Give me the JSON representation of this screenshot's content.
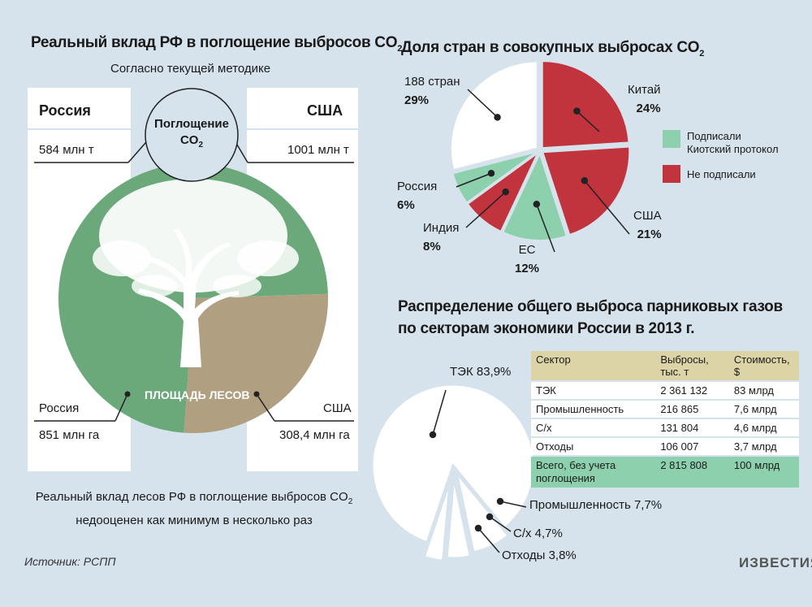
{
  "left": {
    "title": "Реальный вклад РФ в поглощение выбросов CO",
    "title_sub": "2",
    "subtitle": "Согласно текущей методике",
    "russia_label": "Россия",
    "usa_label": "США",
    "circle_label": "Поглощение",
    "circle_co2": "CO",
    "circle_co2_sub": "2",
    "russia_absorption": "584 млн т",
    "usa_absorption": "1001 млн т",
    "forest_label": "ПЛОЩАДЬ ЛЕСОВ",
    "russia_forest_country": "Россия",
    "russia_forest_area": "851 млн га",
    "usa_forest_country": "США",
    "usa_forest_area": "308,4 млн га",
    "footnote_line1": "Реальный вклад лесов РФ в поглощение выбросов CO",
    "footnote_line1_sub": "2",
    "footnote_line2": "недооценен как минимум в несколько раз",
    "colors": {
      "russia": "#6ba97b",
      "usa": "#b09f80"
    }
  },
  "right_top": {
    "title": "Доля стран в совокупных выбросах CO",
    "title_sub": "2",
    "legend": [
      {
        "label_line1": "Подписали",
        "label_line2": "Киотский протокол",
        "color": "#8dd0ae"
      },
      {
        "label_line1": "Не подписали",
        "label_line2": "",
        "color": "#c1343e"
      }
    ]
  },
  "right_bottom": {
    "title_line1": "Распределение общего выброса парниковых газов",
    "title_line2": "по секторам экономики России в 2013 г.",
    "table": {
      "headers": [
        "Сектор",
        "Выбросы, тыс. т",
        "Стоимость, $"
      ],
      "rows": [
        [
          "ТЭК",
          "2 361 132",
          "83 млрд"
        ],
        [
          "Промышленность",
          "216 865",
          "7,6 млрд"
        ],
        [
          "С/х",
          "131 804",
          "4,6 млрд"
        ],
        [
          "Отходы",
          "106 007",
          "3,7 млрд"
        ]
      ],
      "total": [
        "Всего, без учета поглощения",
        "2 815 808",
        "100 млрд"
      ]
    }
  },
  "chart_data": [
    {
      "type": "pie",
      "title": "Реальный вклад РФ в поглощение выбросов CO2",
      "slices": [
        {
          "label": "Россия",
          "value": 851,
          "unit": "млн га"
        },
        {
          "label": "США",
          "value": 308.4,
          "unit": "млн га"
        }
      ]
    },
    {
      "type": "pie",
      "title": "Доля стран в совокупных выбросах CO2",
      "slices": [
        {
          "label": "Китай",
          "value": 24,
          "display": "24%",
          "group": "Не подписали"
        },
        {
          "label": "США",
          "value": 21,
          "display": "21%",
          "group": "Не подписали"
        },
        {
          "label": "ЕС",
          "value": 12,
          "display": "12%",
          "group": "Подписали"
        },
        {
          "label": "Индия",
          "value": 8,
          "display": "8%",
          "group": "Не подписали"
        },
        {
          "label": "Россия",
          "value": 6,
          "display": "6%",
          "group": "Подписали"
        },
        {
          "label": "188 стран",
          "value": 29,
          "display": "29%",
          "group": "none"
        }
      ]
    },
    {
      "type": "pie",
      "title": "Распределение общего выброса парниковых газов по секторам экономики России в 2013 г.",
      "slices": [
        {
          "label": "ТЭК 83,9%",
          "value": 83.9
        },
        {
          "label": "Промышленность 7,7%",
          "value": 7.7
        },
        {
          "label": "С/х 4,7%",
          "value": 4.7
        },
        {
          "label": "Отходы 3,8%",
          "value": 3.8
        }
      ]
    }
  ],
  "source": "Источник: РСПП",
  "brand": "ИЗВЕСТИЯ"
}
